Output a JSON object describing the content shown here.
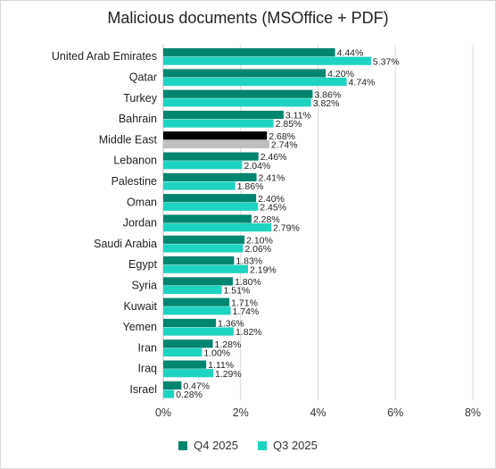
{
  "chart_data": {
    "type": "bar",
    "orientation": "horizontal",
    "title": "Malicious documents (MSOffice + PDF)",
    "categories": [
      "United Arab Emirates",
      "Qatar",
      "Turkey",
      "Bahrain",
      "Middle East",
      "Lebanon",
      "Palestine",
      "Oman",
      "Jordan",
      "Saudi Arabia",
      "Egypt",
      "Syria",
      "Kuwait",
      "Yemen",
      "Iran",
      "Iraq",
      "Israel"
    ],
    "series": [
      {
        "name": "Q4 2025",
        "color": "#00856f",
        "highlight_color": "#000000",
        "values": [
          4.44,
          4.2,
          3.86,
          3.11,
          2.68,
          2.46,
          2.41,
          2.4,
          2.28,
          2.1,
          1.83,
          1.8,
          1.71,
          1.36,
          1.28,
          1.11,
          0.47
        ],
        "labels": [
          "4.44%",
          "4.20%",
          "3.86%",
          "3.11%",
          "2.68%",
          "2.46%",
          "2.41%",
          "2.40%",
          "2.28%",
          "2.10%",
          "1.83%",
          "1.80%",
          "1.71%",
          "1.36%",
          "1.28%",
          "1.11%",
          "0.47%"
        ]
      },
      {
        "name": "Q3 2025",
        "color": "#1ed4c0",
        "highlight_color": "#bfbfbf",
        "values": [
          5.37,
          4.74,
          3.82,
          2.85,
          2.74,
          2.04,
          1.86,
          2.45,
          2.79,
          2.06,
          2.19,
          1.51,
          1.74,
          1.82,
          1.0,
          1.29,
          0.28
        ],
        "labels": [
          "5.37%",
          "4.74%",
          "3.82%",
          "2.85%",
          "2.74%",
          "2.04%",
          "1.86%",
          "2.45%",
          "2.79%",
          "2.06%",
          "2.19%",
          "1.51%",
          "1.74%",
          "1.82%",
          "1.00%",
          "1.29%",
          "0.28%"
        ]
      }
    ],
    "highlight_category": "Middle East",
    "xlim": [
      0,
      8
    ],
    "xticks": [
      0,
      2,
      4,
      6,
      8
    ],
    "xtick_labels": [
      "0%",
      "2%",
      "4%",
      "6%",
      "8%"
    ],
    "grid": "vertical",
    "legend_position": "bottom"
  }
}
